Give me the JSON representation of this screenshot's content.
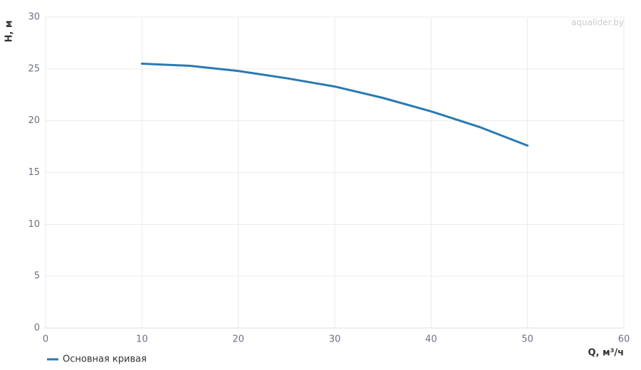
{
  "chart_data": {
    "type": "line",
    "x_label": "Q, м³/ч",
    "y_label": "H, м",
    "watermark": "aqualider.by",
    "x": [
      10,
      15,
      20,
      25,
      30,
      35,
      40,
      45,
      50
    ],
    "series": [
      {
        "name": "Основная кривая",
        "color": "#2a7ab0",
        "values": [
          25.5,
          25.3,
          24.8,
          24.1,
          23.3,
          22.2,
          20.9,
          19.4,
          17.6
        ]
      }
    ],
    "xlim": [
      0,
      60
    ],
    "xticks": [
      0,
      10,
      20,
      30,
      40,
      50,
      60
    ],
    "ylim": [
      0,
      30
    ],
    "yticks": [
      0,
      5,
      10,
      15,
      20,
      25,
      30
    ],
    "grid": true,
    "legend": "bottom-left"
  }
}
